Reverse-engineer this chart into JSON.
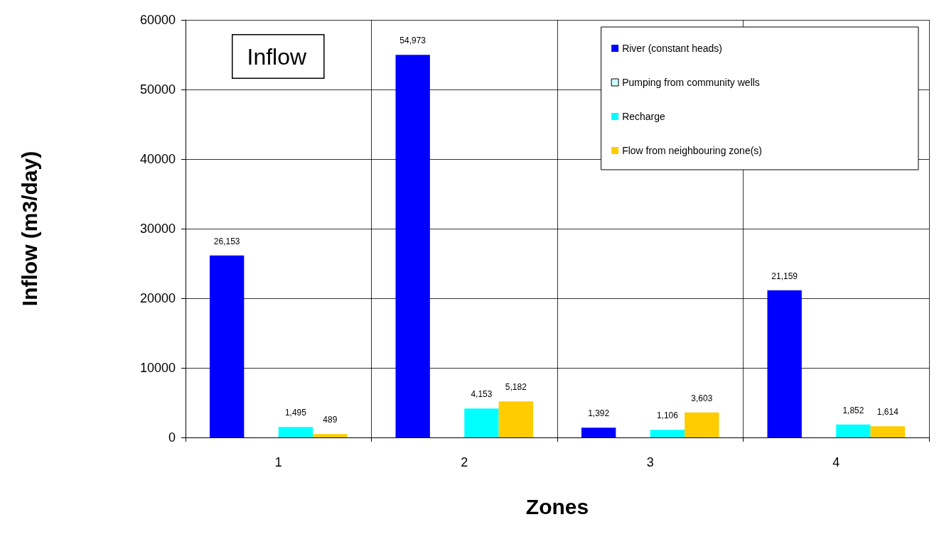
{
  "chart_data": {
    "type": "bar",
    "xlabel": "Zones",
    "ylabel": "Inflow (m3/day)",
    "annotations": [
      "Inflow"
    ],
    "categories": [
      "1",
      "2",
      "3",
      "4"
    ],
    "series": [
      {
        "name": "River (constant heads)",
        "color": "#0000ff",
        "values": [
          26153,
          54973,
          1392,
          21159
        ],
        "value_labels": [
          "26,153",
          "54,973",
          "1,392",
          "21,159"
        ]
      },
      {
        "name": "Pumping from community wells",
        "color": "#ccffff",
        "values": [
          0,
          0,
          0,
          0
        ],
        "value_labels": [
          null,
          null,
          null,
          null
        ]
      },
      {
        "name": "Recharge",
        "color": "#00ffff",
        "values": [
          1495,
          4153,
          1106,
          1852
        ],
        "value_labels": [
          "1,495",
          "4,153",
          "1,106",
          "1,852"
        ]
      },
      {
        "name": "Flow from neighbouring zone(s)",
        "color": "#ffcc00",
        "values": [
          489,
          5182,
          3603,
          1614
        ],
        "value_labels": [
          "489",
          "5,182",
          "3,603",
          "1,614"
        ]
      }
    ],
    "ylim": [
      0,
      60000
    ],
    "yticks": [
      0,
      10000,
      20000,
      30000,
      40000,
      50000,
      60000
    ],
    "grid": true,
    "legend": "top right"
  }
}
